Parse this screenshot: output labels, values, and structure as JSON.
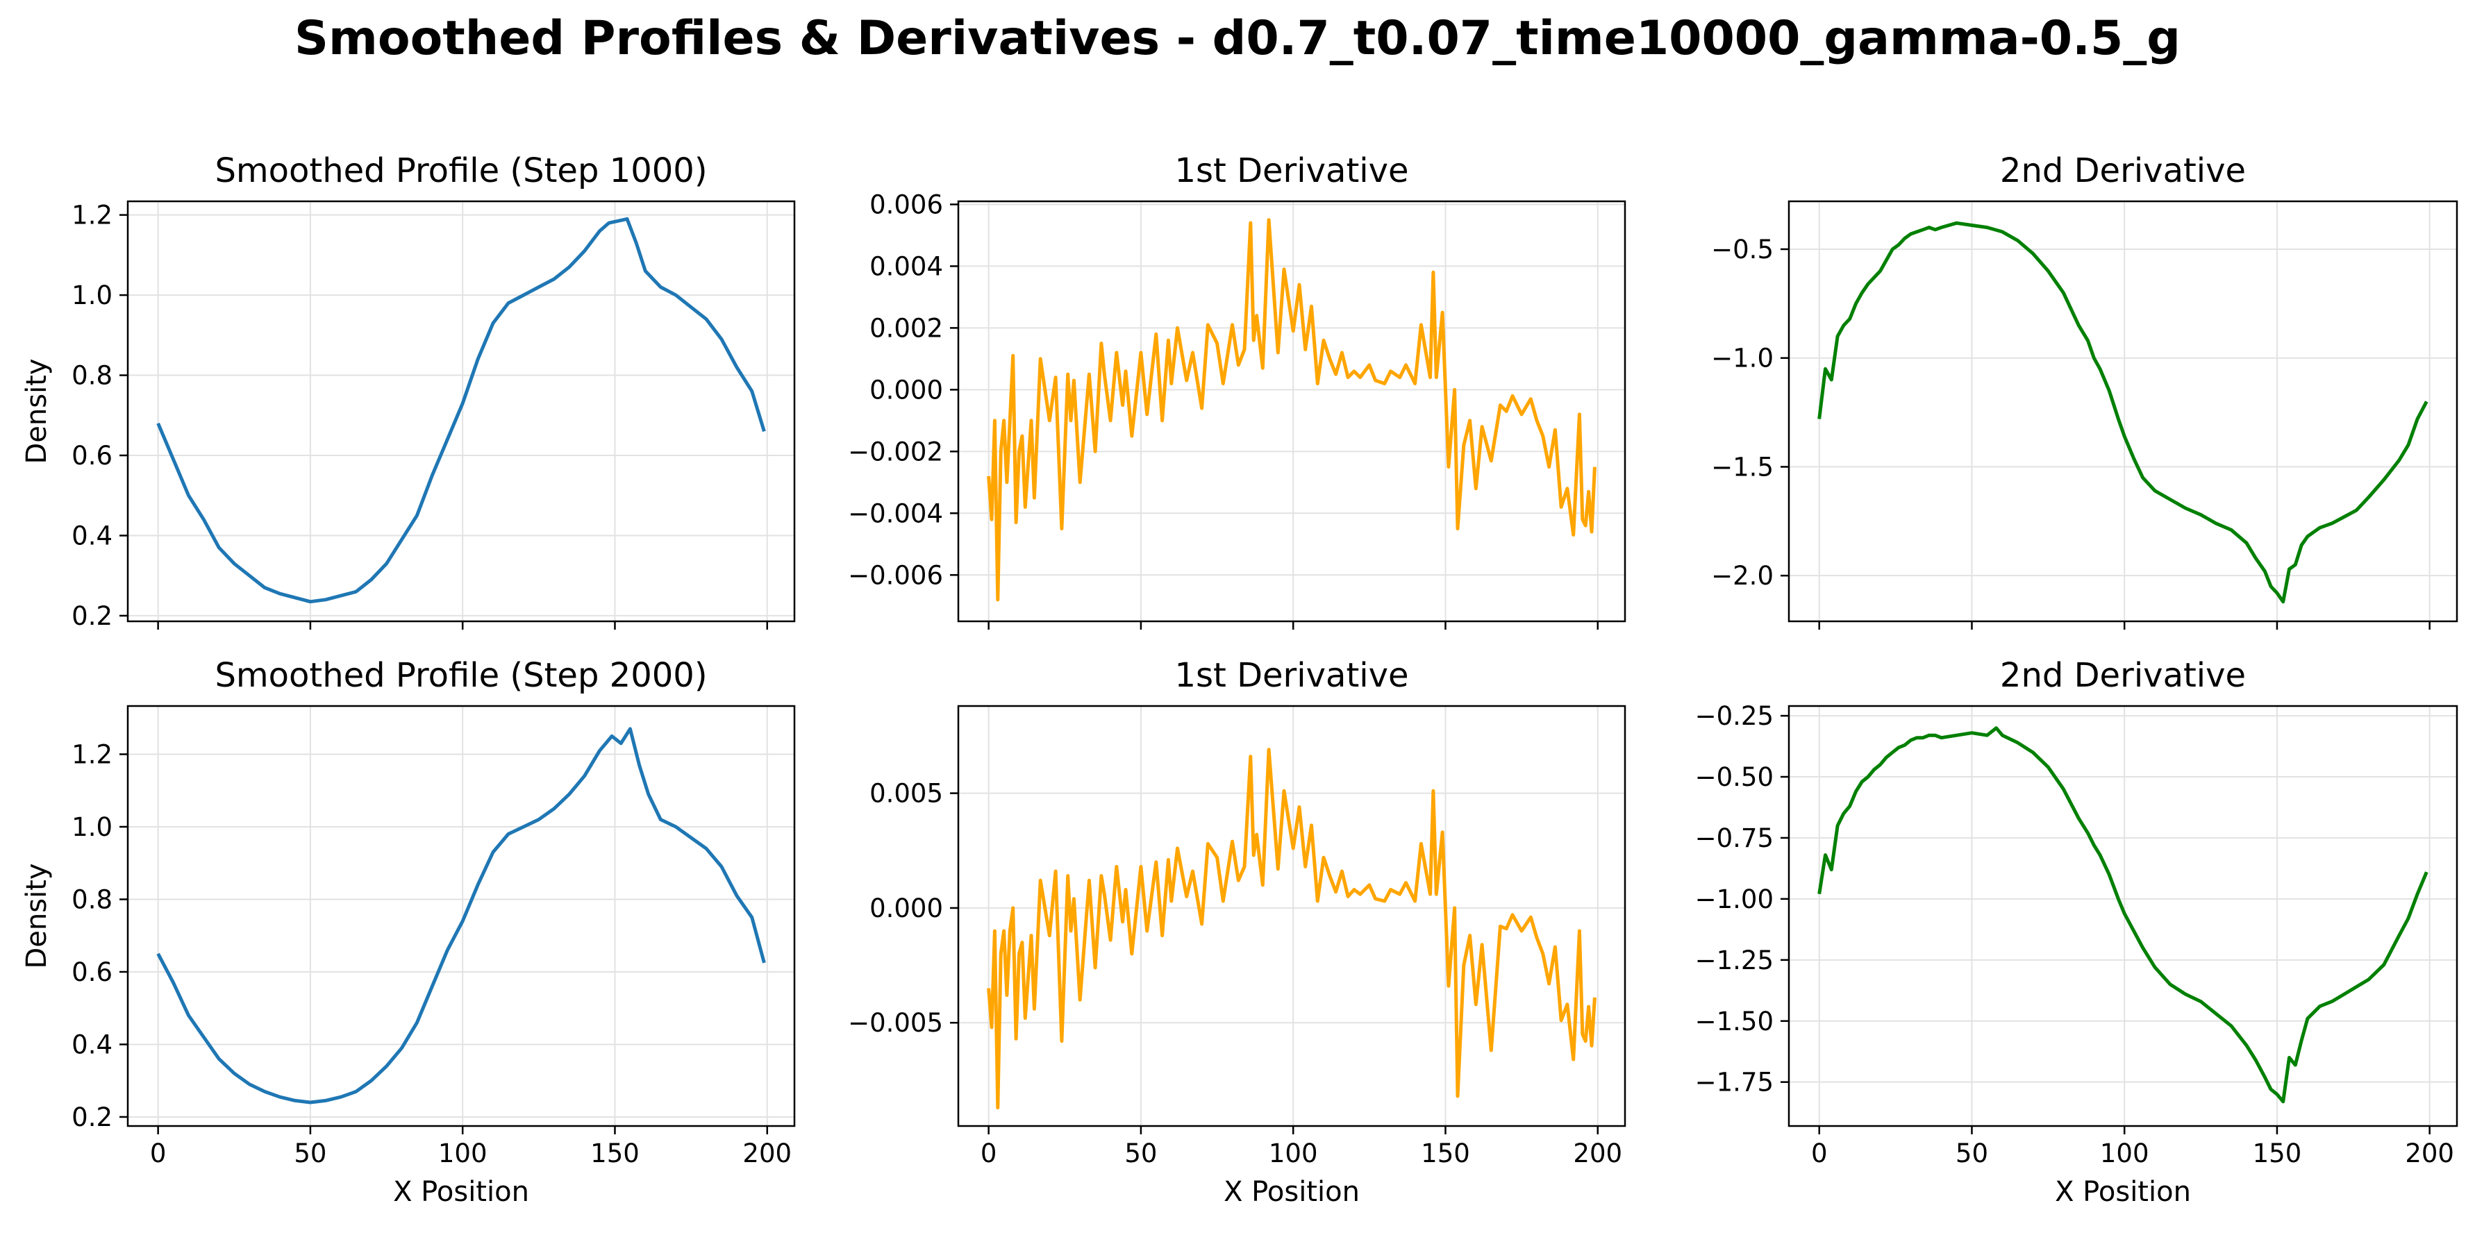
{
  "suptitle": "Smoothed Profiles & Derivatives - d0.7_t0.07_time10000_gamma-0.5_g",
  "chart_data": [
    {
      "type": "line",
      "title": "Smoothed Profile (Step 1000)",
      "xlabel": "",
      "ylabel": "Density",
      "xlim": [
        -9.95,
        208.95
      ],
      "ylim": [
        0.186,
        1.234
      ],
      "xticks": [
        0,
        50,
        100,
        150,
        200
      ],
      "yticks": [
        0.2,
        0.4,
        0.6,
        0.8,
        1.0,
        1.2
      ],
      "ytick_labels": [
        "0.2",
        "0.4",
        "0.6",
        "0.8",
        "1.0",
        "1.2"
      ],
      "show_xtick_labels": false,
      "grid": true,
      "color": "#1f77b4",
      "x": [
        0,
        5,
        10,
        15,
        20,
        25,
        30,
        35,
        40,
        45,
        50,
        55,
        60,
        65,
        70,
        75,
        80,
        85,
        90,
        95,
        100,
        105,
        110,
        115,
        120,
        125,
        130,
        135,
        140,
        145,
        148,
        151,
        154,
        157,
        160,
        165,
        170,
        175,
        180,
        185,
        190,
        195,
        199
      ],
      "y": [
        0.68,
        0.59,
        0.5,
        0.44,
        0.37,
        0.33,
        0.3,
        0.27,
        0.255,
        0.245,
        0.235,
        0.24,
        0.25,
        0.26,
        0.29,
        0.33,
        0.39,
        0.45,
        0.55,
        0.64,
        0.73,
        0.84,
        0.93,
        0.98,
        1.0,
        1.02,
        1.04,
        1.07,
        1.11,
        1.16,
        1.18,
        1.185,
        1.19,
        1.13,
        1.06,
        1.02,
        1.0,
        0.97,
        0.94,
        0.89,
        0.82,
        0.76,
        0.66
      ],
      "series": [
        {
          "values": "see y"
        }
      ]
    },
    {
      "type": "line",
      "title": "1st Derivative",
      "xlabel": "",
      "ylabel": "",
      "xlim": [
        -9.95,
        208.95
      ],
      "ylim": [
        -0.0075,
        0.0061
      ],
      "xticks": [
        0,
        50,
        100,
        150,
        200
      ],
      "yticks": [
        -0.006,
        -0.004,
        -0.002,
        0.0,
        0.002,
        0.004,
        0.006
      ],
      "ytick_labels": [
        "−0.006",
        "−0.004",
        "−0.002",
        "0.000",
        "0.002",
        "0.004",
        "0.006"
      ],
      "show_xtick_labels": false,
      "grid": true,
      "color": "#ffa500",
      "x": [
        0,
        1,
        2,
        3,
        4,
        5,
        6,
        7,
        8,
        9,
        10,
        11,
        12,
        14,
        15,
        17,
        20,
        22,
        24,
        26,
        27,
        28,
        30,
        33,
        35,
        37,
        38,
        40,
        42,
        44,
        45,
        47,
        50,
        52,
        55,
        57,
        59,
        60,
        62,
        65,
        67,
        70,
        72,
        75,
        77,
        80,
        82,
        84,
        86,
        87,
        88,
        90,
        92,
        95,
        97,
        100,
        102,
        104,
        106,
        108,
        110,
        112,
        114,
        116,
        118,
        120,
        122,
        125,
        127,
        130,
        132,
        135,
        137,
        140,
        142,
        145,
        146,
        147,
        149,
        151,
        153,
        154,
        156,
        158,
        160,
        162,
        165,
        168,
        170,
        172,
        175,
        178,
        180,
        182,
        184,
        186,
        188,
        190,
        192,
        194,
        195,
        196,
        197,
        198,
        199
      ],
      "y": [
        -0.0028,
        -0.0042,
        -0.001,
        -0.0068,
        -0.002,
        -0.001,
        -0.003,
        -0.001,
        0.0011,
        -0.0043,
        -0.002,
        -0.0015,
        -0.0038,
        -0.001,
        -0.0035,
        0.001,
        -0.001,
        0.0004,
        -0.0045,
        0.0005,
        -0.001,
        0.0003,
        -0.003,
        0.0005,
        -0.002,
        0.0015,
        0.0005,
        -0.001,
        0.0012,
        -0.0005,
        0.0006,
        -0.0015,
        0.0012,
        -0.0008,
        0.0018,
        -0.001,
        0.0016,
        0.0002,
        0.002,
        0.0003,
        0.0012,
        -0.0006,
        0.0021,
        0.0015,
        0.0002,
        0.0021,
        0.0008,
        0.0013,
        0.0054,
        0.0016,
        0.0024,
        0.0007,
        0.0055,
        0.0012,
        0.0039,
        0.0019,
        0.0034,
        0.0013,
        0.0027,
        0.0002,
        0.0016,
        0.001,
        0.0005,
        0.0012,
        0.0004,
        0.0006,
        0.0004,
        0.0008,
        0.0003,
        0.0002,
        0.0006,
        0.0004,
        0.0008,
        0.0002,
        0.0021,
        0.0004,
        0.0038,
        0.0004,
        0.0025,
        -0.0025,
        0.0,
        -0.0045,
        -0.0018,
        -0.001,
        -0.0032,
        -0.0012,
        -0.0023,
        -0.0005,
        -0.0007,
        -0.0002,
        -0.0008,
        -0.0003,
        -0.001,
        -0.0015,
        -0.0025,
        -0.0013,
        -0.0038,
        -0.0032,
        -0.0047,
        -0.0008,
        -0.0042,
        -0.0044,
        -0.0033,
        -0.0046,
        -0.0025
      ],
      "series": [
        {
          "values": "see y"
        }
      ]
    },
    {
      "type": "line",
      "title": "2nd Derivative",
      "xlabel": "",
      "ylabel": "",
      "xlim": [
        -9.95,
        208.95
      ],
      "ylim": [
        -2.21,
        -0.28
      ],
      "xticks": [
        0,
        50,
        100,
        150,
        200
      ],
      "yticks": [
        -2.0,
        -1.5,
        -1.0,
        -0.5
      ],
      "ytick_labels": [
        "−2.0",
        "−1.5",
        "−1.0",
        "−0.5"
      ],
      "show_xtick_labels": false,
      "grid": true,
      "color": "#008000",
      "x": [
        0,
        2,
        4,
        6,
        8,
        10,
        12,
        14,
        16,
        18,
        20,
        22,
        24,
        26,
        28,
        30,
        32,
        34,
        36,
        38,
        40,
        45,
        50,
        55,
        60,
        65,
        70,
        75,
        80,
        85,
        88,
        90,
        92,
        95,
        98,
        100,
        103,
        106,
        110,
        115,
        120,
        125,
        130,
        135,
        140,
        143,
        146,
        148,
        150,
        152,
        154,
        156,
        158,
        160,
        164,
        168,
        172,
        176,
        180,
        185,
        190,
        193,
        196,
        199
      ],
      "y": [
        -1.28,
        -1.05,
        -1.1,
        -0.9,
        -0.85,
        -0.82,
        -0.75,
        -0.7,
        -0.66,
        -0.63,
        -0.6,
        -0.55,
        -0.5,
        -0.48,
        -0.45,
        -0.43,
        -0.42,
        -0.41,
        -0.4,
        -0.41,
        -0.4,
        -0.38,
        -0.39,
        -0.4,
        -0.42,
        -0.46,
        -0.52,
        -0.6,
        -0.7,
        -0.85,
        -0.92,
        -1.0,
        -1.05,
        -1.15,
        -1.28,
        -1.36,
        -1.46,
        -1.55,
        -1.61,
        -1.65,
        -1.69,
        -1.72,
        -1.76,
        -1.79,
        -1.85,
        -1.92,
        -1.98,
        -2.05,
        -2.08,
        -2.12,
        -1.97,
        -1.95,
        -1.86,
        -1.82,
        -1.78,
        -1.76,
        -1.73,
        -1.7,
        -1.64,
        -1.56,
        -1.47,
        -1.4,
        -1.28,
        -1.2
      ],
      "series": [
        {
          "values": "see y"
        }
      ]
    },
    {
      "type": "line",
      "title": "Smoothed Profile (Step 2000)",
      "xlabel": "X Position",
      "ylabel": "Density",
      "xlim": [
        -9.95,
        208.95
      ],
      "ylim": [
        0.175,
        1.333
      ],
      "xticks": [
        0,
        50,
        100,
        150,
        200
      ],
      "xtick_labels": [
        "0",
        "50",
        "100",
        "150",
        "200"
      ],
      "yticks": [
        0.2,
        0.4,
        0.6,
        0.8,
        1.0,
        1.2
      ],
      "ytick_labels": [
        "0.2",
        "0.4",
        "0.6",
        "0.8",
        "1.0",
        "1.2"
      ],
      "show_xtick_labels": true,
      "grid": true,
      "color": "#1f77b4",
      "x": [
        0,
        5,
        10,
        15,
        20,
        25,
        30,
        35,
        40,
        45,
        50,
        55,
        60,
        65,
        70,
        75,
        80,
        85,
        90,
        95,
        100,
        105,
        110,
        115,
        120,
        125,
        130,
        135,
        140,
        145,
        149,
        152,
        155,
        158,
        161,
        165,
        170,
        175,
        180,
        185,
        190,
        195,
        199
      ],
      "y": [
        0.65,
        0.57,
        0.48,
        0.42,
        0.36,
        0.32,
        0.29,
        0.27,
        0.255,
        0.245,
        0.24,
        0.245,
        0.255,
        0.27,
        0.3,
        0.34,
        0.39,
        0.46,
        0.56,
        0.66,
        0.74,
        0.84,
        0.93,
        0.98,
        1.0,
        1.02,
        1.05,
        1.09,
        1.14,
        1.21,
        1.25,
        1.23,
        1.27,
        1.17,
        1.09,
        1.02,
        1.0,
        0.97,
        0.94,
        0.89,
        0.81,
        0.75,
        0.625
      ],
      "series": [
        {
          "values": "see y"
        }
      ]
    },
    {
      "type": "line",
      "title": "1st Derivative",
      "xlabel": "X Position",
      "ylabel": "",
      "xlim": [
        -9.95,
        208.95
      ],
      "ylim": [
        -0.0095,
        0.0088
      ],
      "xticks": [
        0,
        50,
        100,
        150,
        200
      ],
      "xtick_labels": [
        "0",
        "50",
        "100",
        "150",
        "200"
      ],
      "yticks": [
        -0.005,
        0.0,
        0.005
      ],
      "ytick_labels": [
        "−0.005",
        "0.000",
        "0.005"
      ],
      "show_xtick_labels": true,
      "grid": true,
      "color": "#ffa500",
      "x": [
        0,
        1,
        2,
        3,
        4,
        5,
        6,
        7,
        8,
        9,
        10,
        11,
        12,
        14,
        15,
        17,
        20,
        22,
        24,
        26,
        27,
        28,
        30,
        33,
        35,
        37,
        38,
        40,
        42,
        44,
        45,
        47,
        50,
        52,
        55,
        57,
        59,
        60,
        62,
        65,
        67,
        70,
        72,
        75,
        77,
        80,
        82,
        84,
        86,
        87,
        88,
        90,
        92,
        95,
        97,
        100,
        102,
        104,
        106,
        108,
        110,
        112,
        114,
        116,
        118,
        120,
        122,
        125,
        127,
        130,
        132,
        135,
        137,
        140,
        142,
        145,
        146,
        147,
        149,
        151,
        153,
        154,
        156,
        158,
        160,
        162,
        165,
        168,
        170,
        172,
        175,
        178,
        180,
        182,
        184,
        186,
        188,
        190,
        192,
        194,
        195,
        196,
        197,
        198,
        199
      ],
      "y": [
        -0.0035,
        -0.0052,
        -0.001,
        -0.0087,
        -0.002,
        -0.001,
        -0.0038,
        -0.001,
        0.0,
        -0.0057,
        -0.002,
        -0.0015,
        -0.0048,
        -0.0012,
        -0.0044,
        0.0012,
        -0.0012,
        0.0016,
        -0.0058,
        0.0014,
        -0.001,
        0.0004,
        -0.004,
        0.0012,
        -0.0026,
        0.0014,
        0.0006,
        -0.0014,
        0.0018,
        -0.0006,
        0.0008,
        -0.002,
        0.0018,
        -0.001,
        0.002,
        -0.0012,
        0.0021,
        0.0003,
        0.0026,
        0.0005,
        0.0016,
        -0.0007,
        0.0028,
        0.0022,
        0.0003,
        0.0029,
        0.0012,
        0.0018,
        0.0066,
        0.0023,
        0.0032,
        0.001,
        0.0069,
        0.0017,
        0.0051,
        0.0026,
        0.0044,
        0.0018,
        0.0036,
        0.0003,
        0.0022,
        0.0014,
        0.0007,
        0.0016,
        0.0005,
        0.0008,
        0.0006,
        0.001,
        0.0004,
        0.0003,
        0.0008,
        0.0006,
        0.0011,
        0.0003,
        0.0028,
        0.0006,
        0.0051,
        0.0006,
        0.0033,
        -0.0034,
        0.0,
        -0.0082,
        -0.0025,
        -0.0012,
        -0.0042,
        -0.0016,
        -0.0062,
        -0.0008,
        -0.0009,
        -0.0003,
        -0.001,
        -0.0004,
        -0.0013,
        -0.002,
        -0.0033,
        -0.0017,
        -0.0049,
        -0.0042,
        -0.0066,
        -0.001,
        -0.0055,
        -0.0058,
        -0.0043,
        -0.006,
        -0.0039
      ],
      "series": [
        {
          "values": "see y"
        }
      ]
    },
    {
      "type": "line",
      "title": "2nd Derivative",
      "xlabel": "X Position",
      "ylabel": "",
      "xlim": [
        -9.95,
        208.95
      ],
      "ylim": [
        -1.93,
        -0.21
      ],
      "xticks": [
        0,
        50,
        100,
        150,
        200
      ],
      "xtick_labels": [
        "0",
        "50",
        "100",
        "150",
        "200"
      ],
      "yticks": [
        -1.75,
        -1.5,
        -1.25,
        -1.0,
        -0.75,
        -0.5,
        -0.25
      ],
      "ytick_labels": [
        "−1.75",
        "−1.50",
        "−1.25",
        "−1.00",
        "−0.75",
        "−0.50",
        "−0.25"
      ],
      "show_xtick_labels": true,
      "grid": true,
      "color": "#008000",
      "x": [
        0,
        2,
        4,
        6,
        8,
        10,
        12,
        14,
        16,
        18,
        20,
        22,
        24,
        26,
        28,
        30,
        32,
        34,
        36,
        38,
        40,
        45,
        50,
        55,
        58,
        60,
        65,
        70,
        75,
        80,
        85,
        88,
        90,
        92,
        95,
        98,
        100,
        103,
        106,
        110,
        115,
        120,
        125,
        130,
        135,
        140,
        143,
        146,
        148,
        150,
        152,
        154,
        156,
        158,
        160,
        164,
        168,
        172,
        176,
        180,
        185,
        190,
        193,
        196,
        199
      ],
      "y": [
        -0.98,
        -0.82,
        -0.88,
        -0.7,
        -0.65,
        -0.62,
        -0.56,
        -0.52,
        -0.5,
        -0.47,
        -0.45,
        -0.42,
        -0.4,
        -0.38,
        -0.37,
        -0.35,
        -0.34,
        -0.34,
        -0.33,
        -0.33,
        -0.34,
        -0.33,
        -0.32,
        -0.33,
        -0.3,
        -0.33,
        -0.36,
        -0.4,
        -0.46,
        -0.55,
        -0.67,
        -0.73,
        -0.78,
        -0.82,
        -0.9,
        -1.0,
        -1.06,
        -1.13,
        -1.2,
        -1.28,
        -1.35,
        -1.39,
        -1.42,
        -1.47,
        -1.52,
        -1.6,
        -1.66,
        -1.73,
        -1.78,
        -1.8,
        -1.83,
        -1.65,
        -1.68,
        -1.58,
        -1.49,
        -1.44,
        -1.42,
        -1.39,
        -1.36,
        -1.33,
        -1.27,
        -1.15,
        -1.08,
        -0.98,
        -0.89
      ],
      "series": [
        {
          "values": "see y"
        }
      ]
    }
  ]
}
